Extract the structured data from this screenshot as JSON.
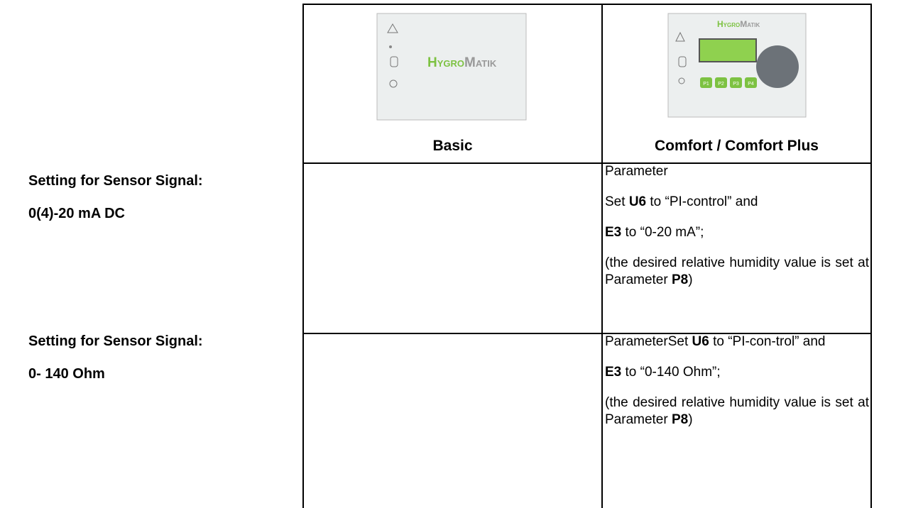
{
  "header": {
    "columns": [
      {
        "logo": [
          "Hygro",
          "Matik"
        ],
        "label": "Basic"
      },
      {
        "logo": [
          "Hygro",
          "Matik"
        ],
        "buttons": [
          "P1",
          "P2",
          "P3",
          "P4"
        ],
        "label": "Comfort / Comfort Plus"
      }
    ]
  },
  "rows": [
    {
      "label": [
        "Setting for Sensor Signal:",
        "0(4)-20 mA DC"
      ],
      "comfort": [
        [
          {
            "t": "Parameter"
          }
        ],
        [
          {
            "t": "Set "
          },
          {
            "b": "U6"
          },
          {
            "t": " to “PI-control” and"
          }
        ],
        [
          {
            "b": "E3"
          },
          {
            "t": " to “0-20 mA”;"
          }
        ],
        [
          {
            "t": "(the desired relative humidity value is set at Parameter "
          },
          {
            "b": "P8"
          },
          {
            "t": ")"
          }
        ]
      ]
    },
    {
      "label": [
        "Setting for Sensor Signal:",
        "0- 140 Ohm"
      ],
      "comfort": [
        [
          {
            "t": "ParameterSet "
          },
          {
            "b": "U6"
          },
          {
            "t": " to “PI-con-trol” and"
          }
        ],
        [
          {
            "b": "E3"
          },
          {
            "t": " to “0-140 Ohm”;"
          }
        ],
        [
          {
            "t": "(the desired relative humidity value is set at Parameter "
          },
          {
            "b": "P8"
          },
          {
            "t": ")"
          }
        ]
      ]
    }
  ]
}
